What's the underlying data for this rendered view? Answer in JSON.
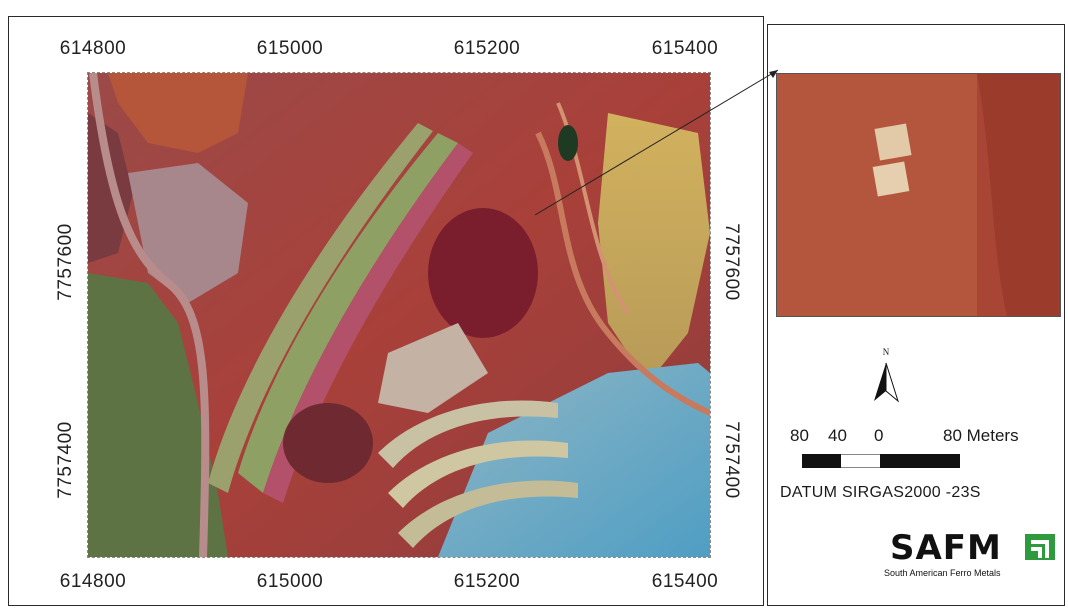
{
  "map": {
    "x_ticks_top": [
      "614800",
      "615000",
      "615200",
      "615400"
    ],
    "x_ticks_bottom": [
      "614800",
      "615000",
      "615200",
      "615400"
    ],
    "y_ticks_left": [
      "7757600",
      "7757400"
    ],
    "y_ticks_right": [
      "7757600",
      "7757400"
    ]
  },
  "legend": {
    "north_label": "N",
    "scale": {
      "labels": [
        "80",
        "40",
        "0",
        "80 Meters"
      ]
    },
    "datum": "DATUM SIRGAS2000 -23S"
  },
  "logo": {
    "wordmark": "SAFM",
    "tagline": "South American Ferro Metals",
    "accent_color": "#2e9a3e"
  },
  "colors": {
    "mine_red": "#a8423a",
    "vegetation_green": "#5f7a46",
    "pit_cyan": "#6aa9c7",
    "bench_yellow": "#c9b36a"
  }
}
